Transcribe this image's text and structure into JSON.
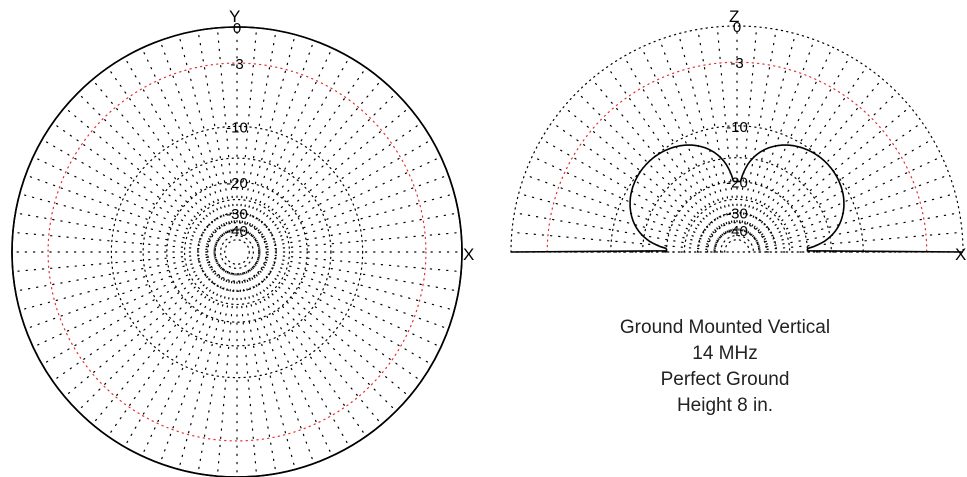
{
  "azimuth_plot": {
    "axis_top_label": "Y",
    "axis_right_label": "X",
    "ring_labels": [
      "0",
      "-3",
      "-10",
      "-20",
      "-30",
      "-40"
    ],
    "ring_values_db": [
      0,
      -3,
      -10,
      -20,
      -30,
      -40
    ],
    "pattern_db": 0
  },
  "elevation_plot": {
    "axis_top_label": "Z",
    "axis_right_label": "X",
    "ring_labels": [
      "0",
      "-3",
      "-10",
      "-20",
      "-30",
      "-40"
    ],
    "ring_values_db": [
      0,
      -3,
      -10,
      -20,
      -30,
      -40
    ],
    "pattern_shape": "sin(2·elevation) lobes, null at zenith"
  },
  "colors": {
    "grid": "#000000",
    "reference_ring": "#e03030",
    "pattern": "#000000"
  },
  "caption": {
    "line1": "Ground Mounted Vertical",
    "line2": "14 MHz",
    "line3": "Perfect Ground",
    "line4": "Height 8 in."
  }
}
